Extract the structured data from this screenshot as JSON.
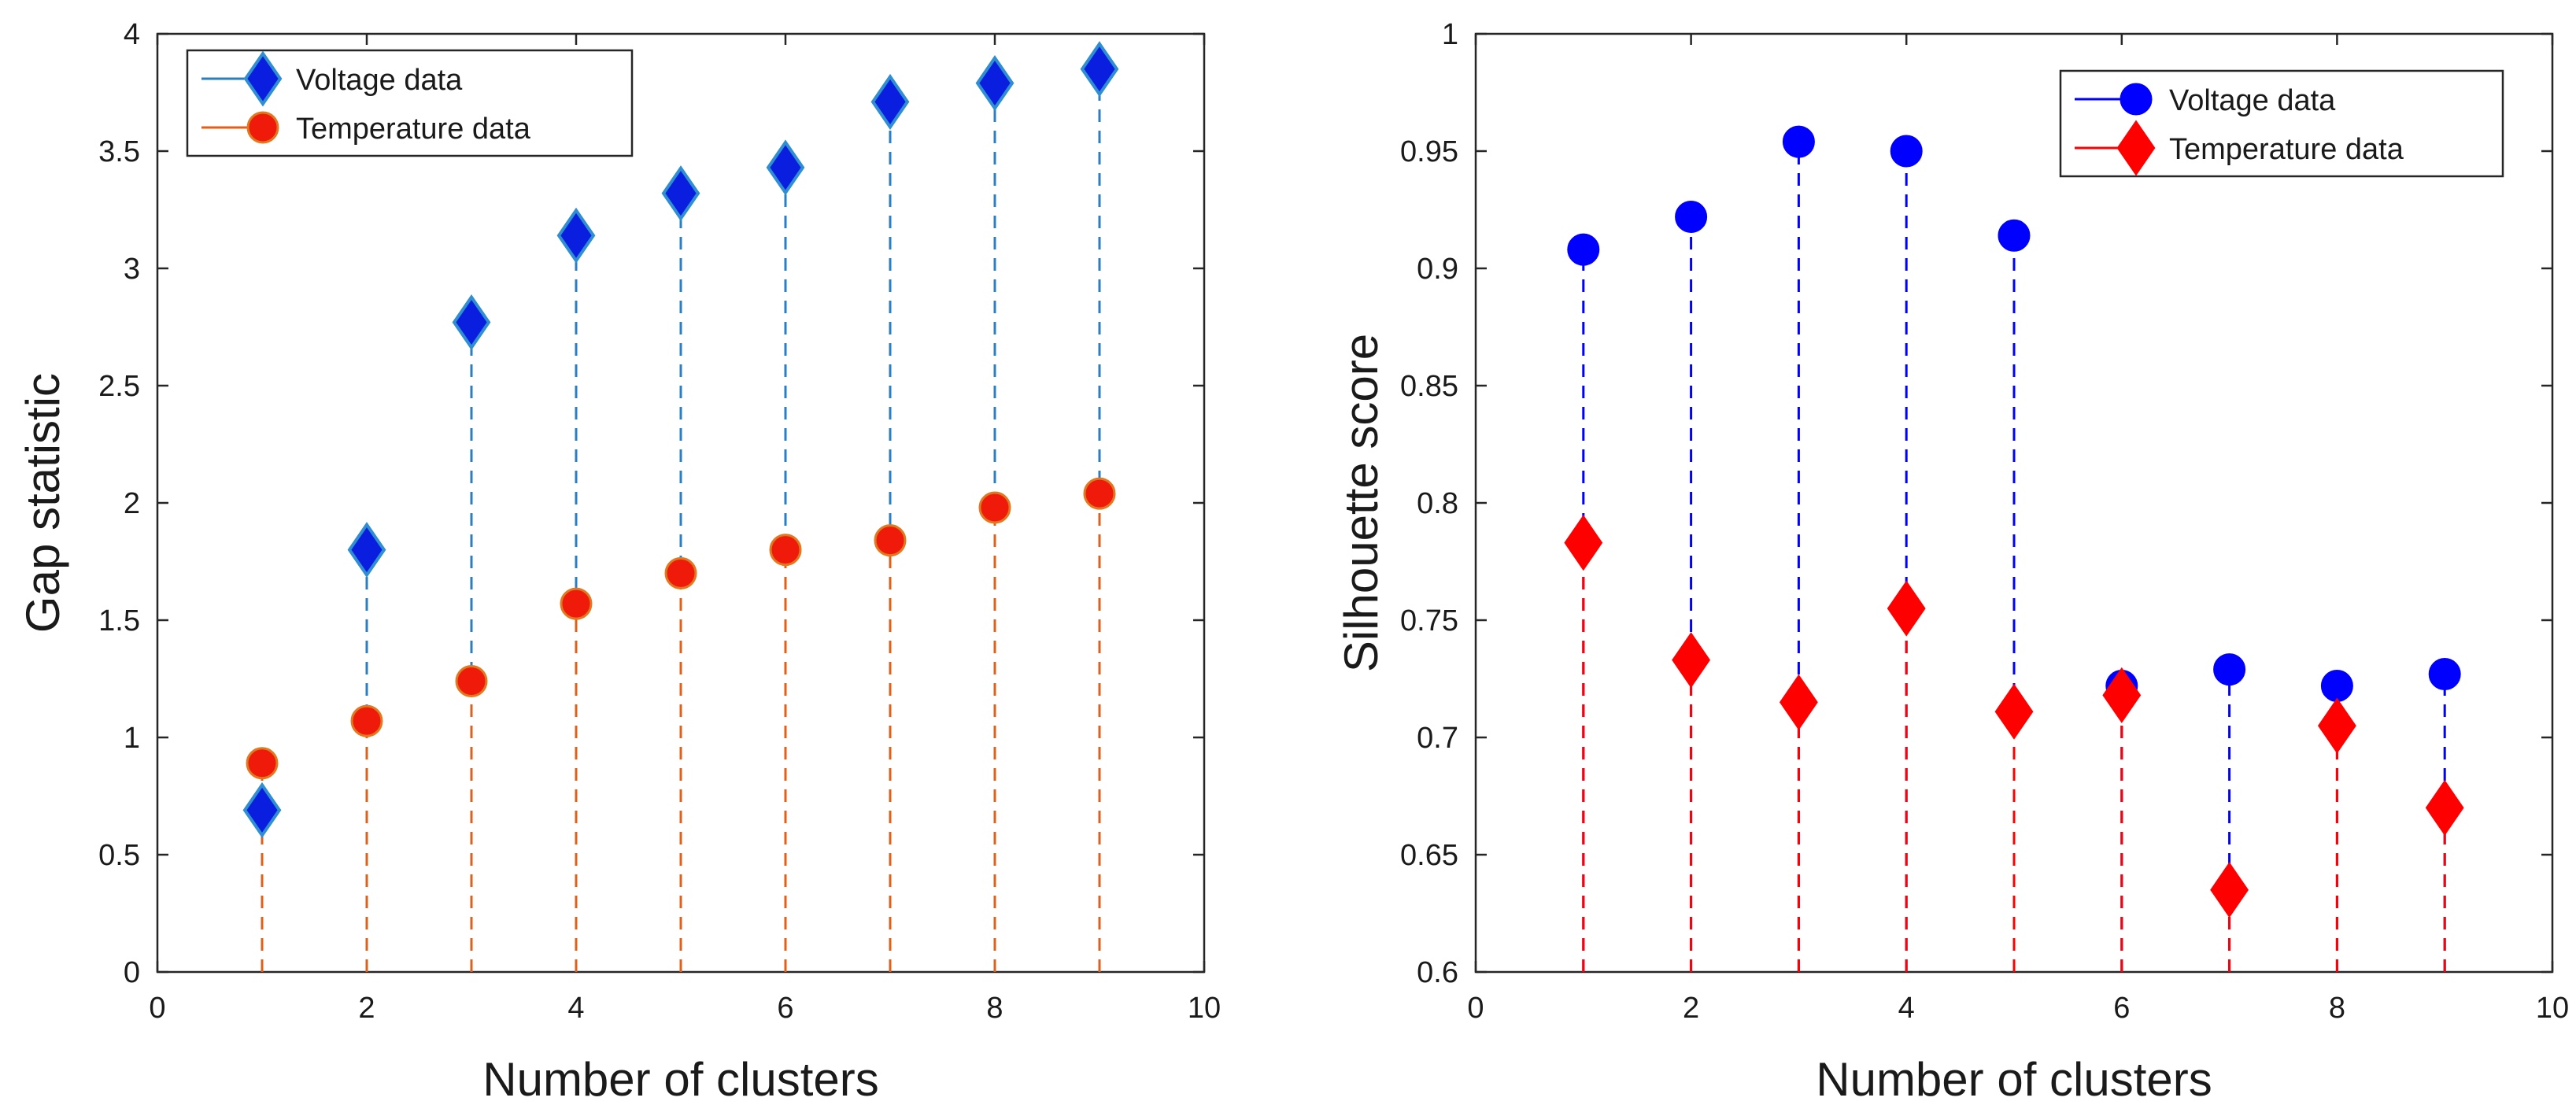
{
  "chart_data": [
    {
      "type": "stem",
      "xlabel": "Number of clusters",
      "ylabel": "Gap statistic",
      "xlim": [
        0,
        10
      ],
      "ylim": [
        0,
        4
      ],
      "xticks": [
        "0",
        "2",
        "4",
        "6",
        "8",
        "10"
      ],
      "yticks": [
        "0",
        "0.5",
        "1",
        "1.5",
        "2",
        "2.5",
        "3",
        "3.5",
        "4"
      ],
      "legend_position": "top-left",
      "x": [
        1,
        2,
        3,
        4,
        5,
        6,
        7,
        8,
        9
      ],
      "series": [
        {
          "name": "Voltage data",
          "marker": "diamond",
          "color": "#0a1ee0",
          "edge": "#2f8fd0",
          "stem_color": "#2a7fc4",
          "values": [
            0.69,
            1.8,
            2.77,
            3.14,
            3.32,
            3.43,
            3.71,
            3.79,
            3.85
          ]
        },
        {
          "name": "Temperature data",
          "marker": "circle",
          "color": "#f01a0a",
          "edge": "#e07a20",
          "stem_color": "#e0601a",
          "values": [
            0.89,
            1.07,
            1.24,
            1.57,
            1.7,
            1.8,
            1.84,
            1.98,
            2.04
          ]
        }
      ]
    },
    {
      "type": "stem",
      "xlabel": "Number of clusters",
      "ylabel": "Silhouette score",
      "xlim": [
        0,
        10
      ],
      "ylim": [
        0.6,
        1
      ],
      "xticks": [
        "0",
        "2",
        "4",
        "6",
        "8",
        "10"
      ],
      "yticks": [
        "0.6",
        "0.65",
        "0.7",
        "0.75",
        "0.8",
        "0.85",
        "0.9",
        "0.95",
        "1"
      ],
      "legend_position": "top-right",
      "x": [
        1,
        2,
        3,
        4,
        5,
        6,
        7,
        8,
        9
      ],
      "series": [
        {
          "name": "Voltage data",
          "marker": "circle",
          "color": "#0000ff",
          "edge": "#0000ff",
          "stem_color": "#0000ff",
          "values": [
            0.908,
            0.922,
            0.954,
            0.95,
            0.914,
            0.722,
            0.729,
            0.722,
            0.727
          ]
        },
        {
          "name": "Temperature data",
          "marker": "diamond",
          "color": "#ff0000",
          "edge": "#ff0000",
          "stem_color": "#ff0000",
          "values": [
            0.783,
            0.733,
            0.715,
            0.755,
            0.711,
            0.718,
            0.635,
            0.705,
            0.67
          ]
        }
      ]
    }
  ]
}
